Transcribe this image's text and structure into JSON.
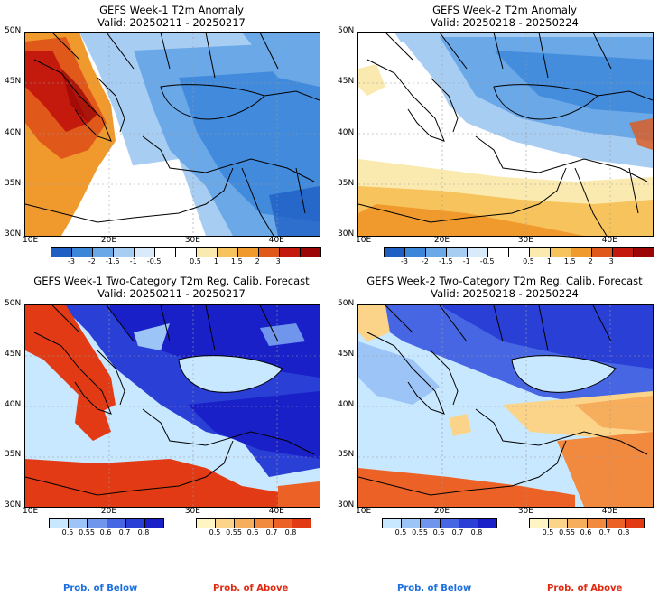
{
  "panels": [
    {
      "title": "GEFS Week-1 T2m Anomaly",
      "valid": "Valid: 20250211 - 20250217"
    },
    {
      "title": "GEFS Week-2 T2m Anomaly",
      "valid": "Valid: 20250218 - 20250224"
    },
    {
      "title": "GEFS Week-1 Two-Category T2m Reg. Calib. Forecast",
      "valid": "Valid: 20250211 - 20250217"
    },
    {
      "title": "GEFS Week-2 Two-Category T2m Reg. Calib. Forecast",
      "valid": "Valid: 20250218 - 20250224"
    }
  ],
  "axes": {
    "lat_labels": [
      "50N",
      "45N",
      "40N",
      "35N",
      "30N"
    ],
    "lon_labels": [
      "10E",
      "20E",
      "30E",
      "40E"
    ]
  },
  "anomaly_colorbar": {
    "labels": [
      "-3",
      "-2",
      "-1.5",
      "-1",
      "-0.5",
      "0.5",
      "1",
      "1.5",
      "2",
      "3"
    ],
    "colors": [
      "#1f5fc4",
      "#3b86d9",
      "#6aa8e8",
      "#a8cdf2",
      "#d9ebfb",
      "#ffffff",
      "#ffffff",
      "#fbeab0",
      "#f7c35c",
      "#f09a2e",
      "#e0591a",
      "#c41a0e",
      "#9c0606"
    ]
  },
  "prob_below_colorbar": {
    "labels": [
      "0.5",
      "0.55",
      "0.6",
      "0.7",
      "0.8"
    ],
    "colors": [
      "#c8e8ff",
      "#9cc4f7",
      "#6f96ec",
      "#4766e3",
      "#2a3fd6",
      "#1a20c8"
    ]
  },
  "prob_above_colorbar": {
    "labels": [
      "0.5",
      "0.55",
      "0.6",
      "0.7",
      "0.8"
    ],
    "colors": [
      "#fff4c4",
      "#fbd48a",
      "#f6ae5c",
      "#f18a3e",
      "#ec6126",
      "#e23a14"
    ]
  },
  "footer": {
    "below_label": "Prob. of Below",
    "above_label": "Prob. of Above",
    "below_color": "#1c6fe0",
    "above_color": "#e02a10"
  }
}
